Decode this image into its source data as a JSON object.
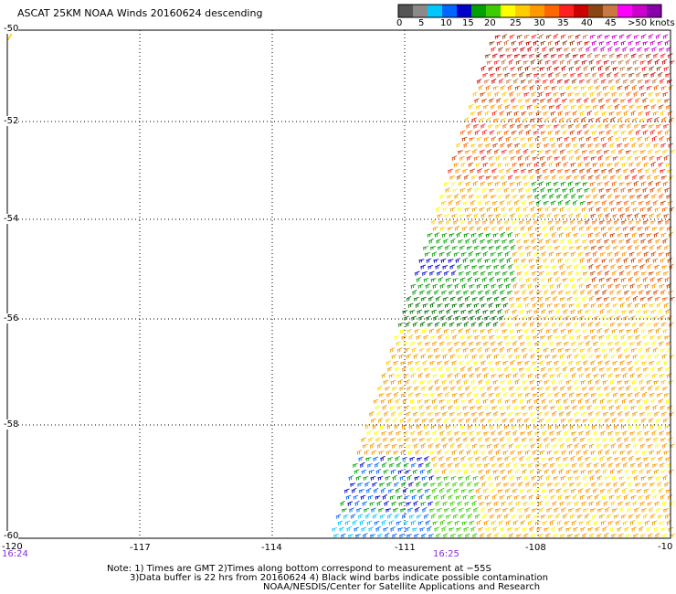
{
  "title": "ASCAT 25KM NOAA Winds 20160624 descending",
  "legend": {
    "labels": [
      "0",
      "5",
      "10",
      "15",
      "20",
      "25",
      "30",
      "35",
      "40",
      "45",
      ">50 knots"
    ],
    "colors": [
      "#555555",
      "#8a8a8a",
      "#00c8ff",
      "#0066ff",
      "#0000c8",
      "#00a000",
      "#3ccc00",
      "#ffff00",
      "#ffcc00",
      "#ff9900",
      "#ff6600",
      "#ff2020",
      "#cc0000",
      "#8b4513",
      "#c87840",
      "#ff00ff",
      "#cc00cc",
      "#8800aa"
    ]
  },
  "lat_labels": [
    "-50",
    "-52",
    "-54",
    "-56",
    "-58",
    "-60"
  ],
  "lon_labels": [
    "-120",
    "-117",
    "-114",
    "-111",
    "-108",
    "-10"
  ],
  "time_labels": [
    "16:24",
    "16:25"
  ],
  "notes": [
    "Note: 1) Times are GMT 2)Times along bottom correspond to measurement at −55S",
    "3)Data buffer is 22 hrs from 20160624 4) Black wind barbs indicate possible contamination",
    "NOAA/NESDIS/Center for Satellite Applications and Research"
  ]
}
